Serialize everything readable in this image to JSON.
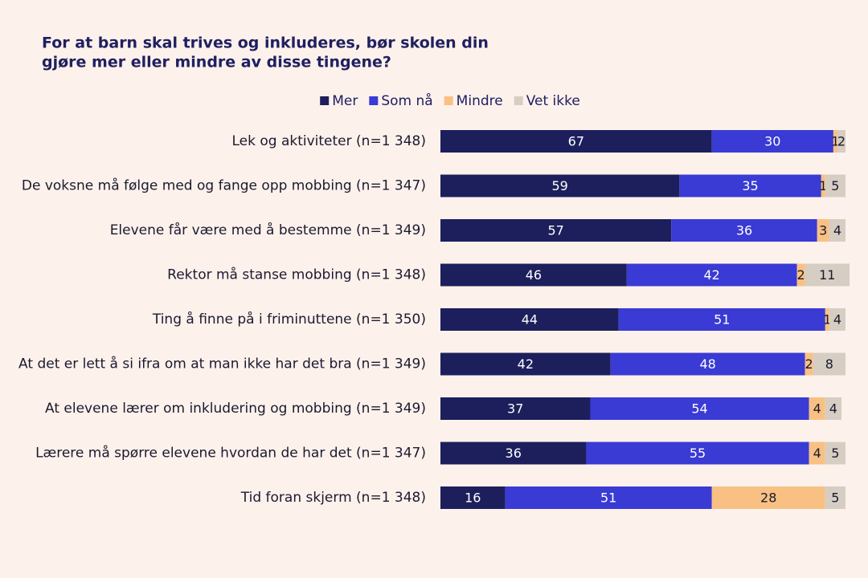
{
  "chart_data": {
    "type": "stacked-bar-horizontal",
    "title": [
      "For at barn skal trives og inkluderes, bør skolen din",
      "gjøre mer eller mindre av disse tingene?"
    ],
    "categories": [
      "Lek og aktiviteter (n=1 348)",
      "De voksne må følge med og fange opp mobbing (n=1 347)",
      "Elevene får være med å bestemme (n=1 349)",
      "Rektor må stanse mobbing (n=1 348)",
      "Ting å finne på i friminuttene (n=1 350)",
      "At det er lett å si ifra om at man ikke har det bra (n=1 349)",
      "At elevene lærer om inkludering og mobbing (n=1 349)",
      "Lærere må spørre elevene hvordan de har det (n=1 347)",
      "Tid foran skjerm (n=1 348)"
    ],
    "series": [
      {
        "name": "Mer",
        "color": "#1c1f5c",
        "values": [
          67,
          59,
          57,
          46,
          44,
          42,
          37,
          36,
          16
        ]
      },
      {
        "name": "Som nå",
        "color": "#3a3ad4",
        "values": [
          30,
          35,
          36,
          42,
          51,
          48,
          54,
          55,
          51
        ]
      },
      {
        "name": "Mindre",
        "color": "#f8c183",
        "values": [
          1,
          1,
          3,
          2,
          1,
          2,
          4,
          4,
          28
        ]
      },
      {
        "name": "Vet ikke",
        "color": "#d6cdc3",
        "values": [
          2,
          5,
          4,
          11,
          4,
          8,
          4,
          5,
          5
        ]
      }
    ]
  }
}
